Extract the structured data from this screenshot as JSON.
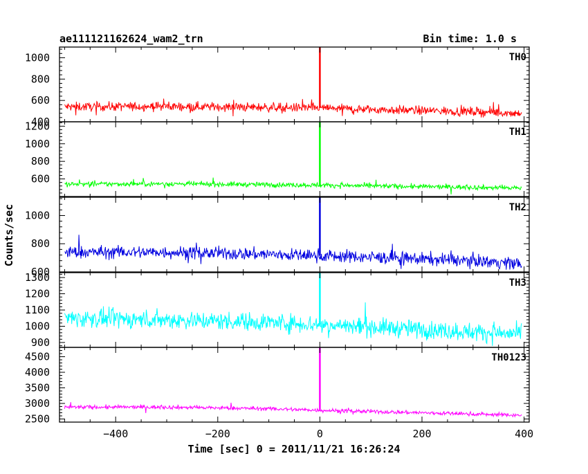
{
  "chart_data": {
    "type": "line",
    "title": "ae111121162624_wam2_trn",
    "subtitle": "Bin time: 1.0 s",
    "xlabel": "Time [sec] 0 = 2011/11/21 16:26:24",
    "ylabel": "Counts/sec",
    "xlim": [
      -510,
      410
    ],
    "x_ticks": [
      -400,
      -200,
      0,
      200,
      400
    ],
    "grid": false,
    "legend": "none",
    "panels": [
      {
        "name": "TH0",
        "color": "#ff0000",
        "ylim": [
          400,
          1100
        ],
        "y_ticks": [
          400,
          600,
          800,
          1000
        ],
        "spike_peak": 1100,
        "trend": {
          "x": [
            -500,
            -300,
            -100,
            0,
            100,
            300,
            395
          ],
          "y": [
            540,
            545,
            535,
            530,
            515,
            495,
            480
          ]
        },
        "noise": 30
      },
      {
        "name": "TH1",
        "color": "#00ff00",
        "ylim": [
          400,
          1250
        ],
        "y_ticks": [
          600,
          800,
          1000,
          1200
        ],
        "spike_peak": 1250,
        "trend": {
          "x": [
            -500,
            -300,
            -100,
            0,
            100,
            300,
            395
          ],
          "y": [
            540,
            545,
            535,
            530,
            520,
            505,
            495
          ]
        },
        "noise": 20
      },
      {
        "name": "TH2",
        "color": "#0000e0",
        "ylim": [
          600,
          1130
        ],
        "y_ticks": [
          600,
          800,
          1000
        ],
        "spike_peak": 1130,
        "trend": {
          "x": [
            -500,
            -300,
            -100,
            0,
            100,
            300,
            395
          ],
          "y": [
            740,
            740,
            725,
            715,
            705,
            680,
            660
          ]
        },
        "noise": 32
      },
      {
        "name": "TH3",
        "color": "#00ffff",
        "ylim": [
          870,
          1330
        ],
        "y_ticks": [
          900,
          1000,
          1100,
          1200,
          1300
        ],
        "spike_peak": 1330,
        "trend": {
          "x": [
            -500,
            -300,
            -100,
            0,
            100,
            300,
            395
          ],
          "y": [
            1050,
            1040,
            1025,
            1010,
            995,
            965,
            950
          ]
        },
        "noise": 40
      },
      {
        "name": "TH0123",
        "color": "#ff00ff",
        "ylim": [
          2400,
          4800
        ],
        "y_ticks": [
          2500,
          3000,
          3500,
          4000,
          4500
        ],
        "spike_peak": 4800,
        "trend": {
          "x": [
            -500,
            -300,
            -100,
            0,
            100,
            300,
            395
          ],
          "y": [
            2880,
            2880,
            2830,
            2780,
            2740,
            2660,
            2620
          ]
        },
        "noise": 45
      }
    ]
  }
}
